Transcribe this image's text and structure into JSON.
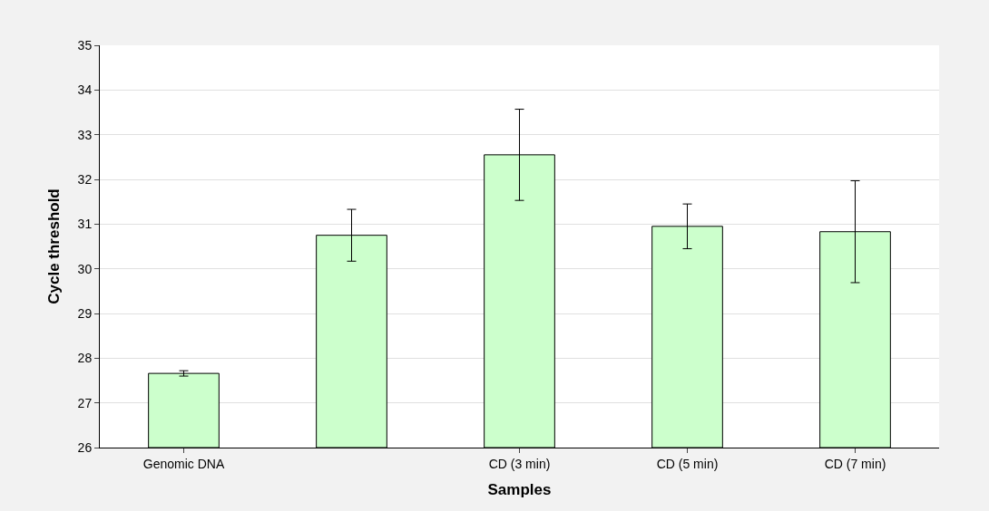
{
  "chart_data": {
    "type": "bar",
    "xlabel": "Samples",
    "ylabel": "Cycle threshold",
    "categories": [
      "Genomic DNA",
      null,
      "CD (3 min)",
      "CD (5 min)",
      "CD (7 min)"
    ],
    "values": [
      27.66,
      30.75,
      32.55,
      30.95,
      30.83
    ],
    "errors": [
      0.06,
      0.58,
      1.02,
      0.5,
      1.14
    ],
    "color": "#ccffcc",
    "ylim": [
      26,
      35
    ],
    "yticks": [
      26,
      27,
      28,
      29,
      30,
      31,
      32,
      33,
      34,
      35
    ],
    "grid": "y"
  }
}
